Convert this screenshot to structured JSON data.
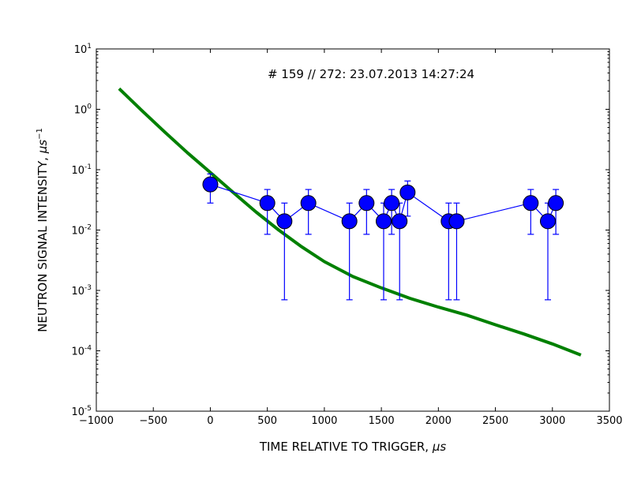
{
  "chart_data": {
    "type": "scatter",
    "title": "",
    "annotation": "# 159 // 272: 23.07.2013 14:27:24",
    "xlabel": "TIME RELATIVE TO TRIGGER, ",
    "xlabel_unit": "μs",
    "ylabel": "NEUTRON SIGNAL INTENSITY, ",
    "ylabel_unit": "μs",
    "ylabel_unit_exp": "−1",
    "xlim": [
      -1000,
      3500
    ],
    "ylim": [
      1e-05,
      10
    ],
    "yscale": "log",
    "grid": false,
    "legend": "none",
    "x_ticks": [
      -1000,
      -500,
      0,
      500,
      1000,
      1500,
      2000,
      2500,
      3000,
      3500
    ],
    "x_tick_labels": [
      "−1000",
      "−500",
      "0",
      "500",
      "1000",
      "1500",
      "2000",
      "2500",
      "3000",
      "3500"
    ],
    "y_tick_exponents": [
      1,
      0,
      -1,
      -2,
      -3,
      -4,
      -5
    ],
    "y_tick_labels": [
      "1",
      "0",
      "-1",
      "-2",
      "-3",
      "-4",
      "-5"
    ],
    "y_tick_base": "10",
    "series": [
      {
        "kind": "points",
        "color": "#0000ff",
        "x": [
          0,
          500,
          650,
          860,
          1220,
          1370,
          1520,
          1590,
          1660,
          1730,
          2090,
          2160,
          2810,
          2960,
          3030
        ],
        "y": [
          0.057,
          0.028,
          0.014,
          0.028,
          0.014,
          0.028,
          0.014,
          0.028,
          0.014,
          0.042,
          0.014,
          0.014,
          0.028,
          0.014,
          0.028
        ],
        "y_low": [
          0.028,
          0.0085,
          0.0007,
          0.0085,
          0.0007,
          0.0085,
          0.0007,
          0.0085,
          0.0007,
          0.017,
          0.0007,
          0.0007,
          0.0085,
          0.0007,
          0.0085
        ],
        "y_high": [
          0.085,
          0.047,
          0.028,
          0.047,
          0.028,
          0.047,
          0.028,
          0.047,
          0.028,
          0.065,
          0.028,
          0.028,
          0.047,
          0.028,
          0.047
        ]
      },
      {
        "kind": "line",
        "color": "#008000",
        "x": [
          -800,
          -600,
          -400,
          -200,
          0,
          200,
          400,
          600,
          800,
          1000,
          1250,
          1500,
          1750,
          2000,
          2250,
          2500,
          2750,
          3000,
          3250
        ],
        "y": [
          2.2,
          0.95,
          0.42,
          0.19,
          0.09,
          0.042,
          0.02,
          0.01,
          0.0053,
          0.003,
          0.0017,
          0.0011,
          0.00074,
          0.00053,
          0.00039,
          0.00027,
          0.00019,
          0.00013,
          8.5e-05
        ]
      }
    ]
  }
}
